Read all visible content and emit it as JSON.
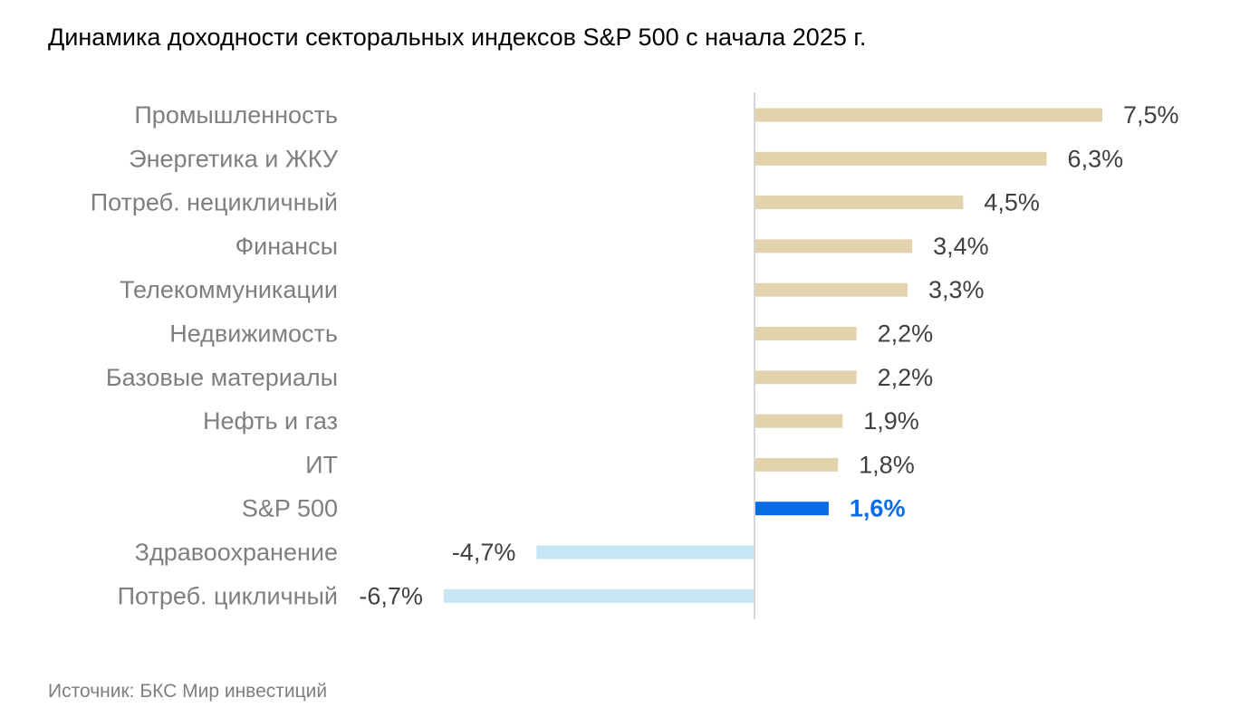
{
  "title": "Динамика доходности секторальных индексов S&P 500 с начала 2025 г.",
  "source": "Источник: БКС Мир инвестиций",
  "colors": {
    "positive": "#e3d3ad",
    "negative": "#c6e6f3",
    "highlight": "#0a6be6",
    "axis": "#d6d6d6",
    "category_label": "#7f7f7f",
    "value_label": "#404040"
  },
  "chart_data": {
    "type": "bar",
    "orientation": "horizontal",
    "categories": [
      "Промышленность",
      "Энергетика и ЖКУ",
      "Потреб. нецикличный",
      "Финансы",
      "Телекоммуникации",
      "Недвижимость",
      "Базовые материалы",
      "Нефть и газ",
      "ИТ",
      "S&P 500",
      "Здравоохранение",
      "Потреб. цикличный"
    ],
    "values": [
      7.5,
      6.3,
      4.5,
      3.4,
      3.3,
      2.2,
      2.2,
      1.9,
      1.8,
      1.6,
      -4.7,
      -6.7
    ],
    "value_labels": [
      "7,5%",
      "6,3%",
      "4,5%",
      "3,4%",
      "3,3%",
      "2,2%",
      "2,2%",
      "1,9%",
      "1,8%",
      "1,6%",
      "-4,7%",
      "-6,7%"
    ],
    "highlight": "S&P 500",
    "unit": "%"
  }
}
